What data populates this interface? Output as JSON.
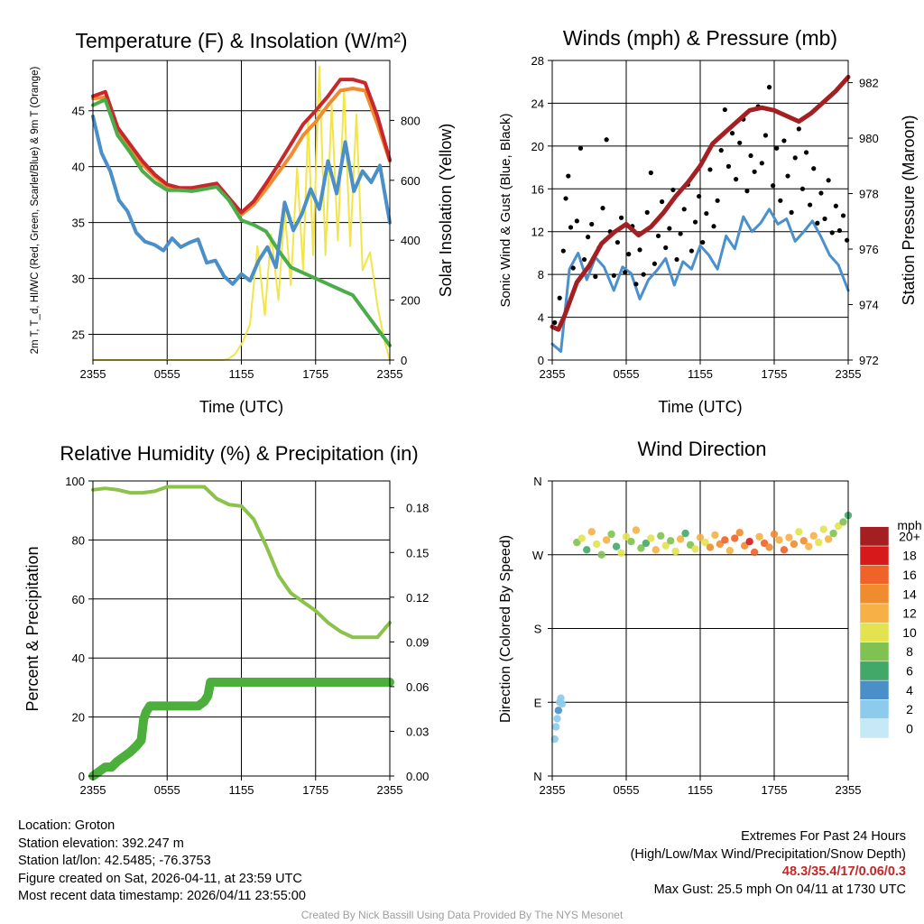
{
  "chart_data": [
    {
      "type": "line",
      "title": "Temperature (F) & Insolation (W/m²)",
      "ylabel_left": "2m T, T_d, HI/WC (Red, Green, Scarlet/Blue) & 9m T (Orange)",
      "ylabel_right": "Solar Insolation (Yellow)",
      "xlabel": "Time (UTC)",
      "x_ticks": [
        "2355",
        "0555",
        "1155",
        "1755",
        "2355"
      ],
      "ylim_left": [
        22.7,
        49.5
      ],
      "yticks_left": [
        25,
        30,
        35,
        40,
        45
      ],
      "ylim_right": [
        0,
        1000
      ],
      "yticks_right": [
        0,
        200,
        400,
        600,
        800
      ],
      "x_hours": [
        0,
        24
      ],
      "series": [
        {
          "name": "Insolation",
          "axis": "right",
          "color": "#f2e54a",
          "x": [
            0,
            4,
            8,
            9.2,
            10.6,
            11.0,
            11.5,
            12.1,
            12.7,
            13.3,
            13.9,
            14.4,
            15.0,
            15.5,
            16.0,
            16.5,
            17.0,
            17.4,
            17.8,
            18.3,
            18.8,
            19.3,
            19.8,
            20.3,
            20.8,
            21.3,
            21.8,
            22.4,
            23.0,
            23.6,
            24.0
          ],
          "values": [
            0,
            0,
            0,
            0,
            0,
            5,
            20,
            60,
            120,
            380,
            150,
            420,
            200,
            500,
            250,
            640,
            300,
            800,
            350,
            980,
            350,
            850,
            400,
            900,
            380,
            820,
            300,
            360,
            180,
            60,
            0
          ]
        },
        {
          "name": "9m T",
          "axis": "left",
          "color": "#f08c2e",
          "x": [
            0,
            1,
            2,
            3,
            4,
            5,
            6,
            7,
            8,
            9,
            10,
            11,
            12,
            13,
            14,
            15,
            16,
            17,
            18,
            19,
            20,
            21,
            22,
            23,
            24
          ],
          "values": [
            46.1,
            46.2,
            43.2,
            41.8,
            40.2,
            39.1,
            38.2,
            37.9,
            37.9,
            38.1,
            38.3,
            37.0,
            35.7,
            36.6,
            38.0,
            39.5,
            41.0,
            42.8,
            44.0,
            45.5,
            46.8,
            47.0,
            46.8,
            43.8,
            40.5
          ]
        },
        {
          "name": "2m T",
          "axis": "left",
          "color": "#c8282c",
          "x": [
            0,
            1,
            2,
            3,
            4,
            5,
            6,
            7,
            8,
            9,
            10,
            11,
            12,
            13,
            14,
            15,
            16,
            17,
            18,
            19,
            20,
            21,
            22,
            23,
            24
          ],
          "values": [
            46.3,
            46.7,
            43.5,
            42.0,
            40.5,
            39.3,
            38.4,
            38.1,
            38.1,
            38.3,
            38.5,
            37.2,
            35.9,
            36.9,
            38.5,
            40.2,
            42.0,
            43.8,
            45.0,
            46.3,
            47.8,
            47.8,
            47.5,
            44.5,
            40.6
          ]
        },
        {
          "name": "Dewpoint T_d",
          "axis": "left",
          "color": "#4aad4a",
          "x": [
            0,
            1,
            2,
            3,
            4,
            5,
            6,
            7,
            8,
            9,
            10,
            11,
            12,
            13,
            14,
            15,
            16,
            17,
            18,
            19,
            20,
            21,
            22,
            23,
            24
          ],
          "values": [
            45.5,
            46.0,
            42.8,
            41.3,
            39.6,
            38.6,
            37.9,
            37.9,
            37.8,
            38.0,
            38.2,
            37.0,
            35.2,
            34.8,
            34.2,
            32.5,
            31.0,
            30.5,
            30.0,
            29.5,
            29.0,
            28.5,
            27.0,
            25.5,
            24.0
          ]
        },
        {
          "name": "Wind Chill",
          "axis": "left",
          "color": "#4b8fc8",
          "x": [
            0,
            0.7,
            1.4,
            2.1,
            2.8,
            3.5,
            4.2,
            5.0,
            5.7,
            6.4,
            7.1,
            7.8,
            8.5,
            9.2,
            9.9,
            10.6,
            11.3,
            12.0,
            12.7,
            13.4,
            14.1,
            14.8,
            15.5,
            16.2,
            16.9,
            17.6,
            18.3,
            19.0,
            19.7,
            20.4,
            21.1,
            21.8,
            22.5,
            23.2,
            24.0
          ],
          "values": [
            44.5,
            41.2,
            39.6,
            37.0,
            36.0,
            34.1,
            33.3,
            33.0,
            32.5,
            33.6,
            32.8,
            33.2,
            33.5,
            31.4,
            31.6,
            30.2,
            29.5,
            30.4,
            29.8,
            31.6,
            32.8,
            31.0,
            36.8,
            34.3,
            35.8,
            38.0,
            36.2,
            40.5,
            37.6,
            42.2,
            37.8,
            39.6,
            38.6,
            40.1,
            35.0
          ]
        }
      ]
    },
    {
      "type": "line",
      "title": "Winds (mph) & Pressure (mb)",
      "ylabel_left": "Sonic Wind & Gust (Blue, Black)",
      "ylabel_right": "Station Pressure (Maroon)",
      "xlabel": "Time (UTC)",
      "x_ticks": [
        "2355",
        "0555",
        "1155",
        "1755",
        "2355"
      ],
      "ylim_left": [
        0,
        28
      ],
      "yticks_left": [
        0,
        4,
        8,
        12,
        16,
        20,
        24,
        28
      ],
      "ylim_right": [
        972,
        982.8
      ],
      "yticks_right": [
        972,
        974,
        976,
        978,
        980,
        982
      ],
      "series": [
        {
          "name": "Sonic Wind",
          "axis": "left",
          "color": "#4a90cc",
          "x": [
            0,
            0.7,
            1.4,
            2.1,
            2.8,
            3.5,
            4.2,
            5.0,
            5.7,
            6.4,
            7.1,
            7.8,
            8.5,
            9.2,
            9.9,
            10.6,
            11.3,
            12.0,
            12.7,
            13.4,
            14.1,
            14.8,
            15.5,
            16.2,
            16.9,
            17.6,
            18.3,
            19.0,
            19.7,
            20.4,
            21.1,
            21.8,
            22.5,
            23.2,
            24.0
          ],
          "values": [
            1.5,
            0.8,
            8.5,
            10.0,
            7.5,
            9.6,
            8.7,
            6.5,
            8.7,
            8.1,
            5.7,
            7.5,
            8.4,
            9.5,
            7.0,
            9.2,
            8.5,
            10.7,
            9.8,
            8.5,
            11.6,
            10.4,
            13.4,
            12.0,
            12.8,
            14.1,
            12.7,
            13.2,
            11.1,
            12.0,
            13.0,
            11.5,
            9.8,
            8.9,
            6.5
          ]
        },
        {
          "name": "Gust",
          "axis": "left",
          "color": "#000000",
          "style": "dots",
          "x": [
            0.2,
            0.6,
            0.9,
            1.1,
            1.3,
            1.5,
            1.7,
            2.0,
            2.3,
            2.6,
            2.9,
            3.2,
            3.5,
            3.8,
            4.1,
            4.4,
            4.7,
            5.0,
            5.3,
            5.6,
            5.9,
            6.2,
            6.5,
            6.8,
            7.1,
            7.4,
            7.7,
            8.0,
            8.3,
            8.6,
            8.9,
            9.2,
            9.5,
            9.8,
            10.1,
            10.4,
            10.7,
            11.0,
            11.3,
            11.6,
            11.9,
            12.2,
            12.5,
            12.8,
            13.1,
            13.4,
            13.7,
            14.0,
            14.3,
            14.6,
            14.9,
            15.2,
            15.5,
            15.8,
            16.1,
            16.4,
            16.7,
            17.0,
            17.3,
            17.6,
            17.9,
            18.2,
            18.5,
            18.8,
            19.1,
            19.4,
            19.7,
            20.0,
            20.3,
            20.6,
            20.9,
            21.2,
            21.5,
            21.8,
            22.1,
            22.4,
            22.7,
            23.0,
            23.3,
            23.6,
            23.9
          ],
          "values": [
            3.5,
            5.8,
            10.2,
            15.1,
            17.2,
            12.4,
            8.6,
            13.0,
            19.8,
            9.4,
            11.5,
            12.7,
            7.8,
            10.5,
            14.2,
            20.6,
            12.0,
            7.9,
            11.0,
            13.3,
            8.2,
            9.9,
            12.5,
            7.1,
            10.3,
            8.0,
            13.8,
            17.5,
            9.0,
            11.6,
            14.8,
            10.5,
            12.3,
            15.9,
            9.4,
            11.8,
            14.1,
            16.4,
            10.2,
            12.9,
            15.3,
            11.0,
            13.7,
            17.8,
            12.5,
            14.9,
            19.6,
            23.4,
            18.1,
            21.2,
            16.9,
            20.3,
            22.5,
            15.8,
            19.1,
            17.6,
            23.7,
            18.4,
            21.0,
            25.5,
            16.3,
            19.8,
            14.9,
            20.5,
            17.2,
            13.8,
            18.9,
            21.6,
            16.0,
            19.4,
            14.5,
            17.9,
            12.8,
            15.6,
            13.2,
            16.8,
            11.9,
            14.4,
            12.1,
            13.5,
            11.2
          ]
        },
        {
          "name": "Station Pressure",
          "axis": "right",
          "color": "#a31f22",
          "x": [
            0,
            0.5,
            1.0,
            2.0,
            3.0,
            4.0,
            5.0,
            6.0,
            7.0,
            8.0,
            9.0,
            10.0,
            11.0,
            12.0,
            13.0,
            14.0,
            15.0,
            16.0,
            17.0,
            18.0,
            19.0,
            20.0,
            21.0,
            22.0,
            23.0,
            24.0
          ],
          "values": [
            973.2,
            973.1,
            973.6,
            974.8,
            975.4,
            976.2,
            976.6,
            976.9,
            976.5,
            976.8,
            977.3,
            977.9,
            978.4,
            979.0,
            979.8,
            980.2,
            980.6,
            981.0,
            981.1,
            981.0,
            980.8,
            980.6,
            980.9,
            981.3,
            981.7,
            982.2
          ]
        }
      ]
    },
    {
      "type": "line",
      "title": "Relative Humidity (%) & Precipitation (in)",
      "ylabel_left": "Percent & Precipitation",
      "ylim_left": [
        0,
        100
      ],
      "yticks_left": [
        0,
        20,
        40,
        60,
        80,
        100
      ],
      "ylim_right": [
        0,
        0.198
      ],
      "yticks_right": [
        "0.00",
        "0.03",
        "0.06",
        "0.09",
        "0.12",
        "0.15",
        "0.18"
      ],
      "x_ticks": [
        "2355",
        "0555",
        "1155",
        "1755",
        "2355"
      ],
      "series": [
        {
          "name": "Relative Humidity",
          "axis": "left",
          "color": "#8bc34a",
          "x": [
            0,
            1,
            2,
            3,
            4,
            5,
            6,
            7,
            8,
            9,
            10,
            11,
            12,
            13,
            14,
            15,
            16,
            17,
            18,
            19,
            20,
            21,
            22,
            23,
            24
          ],
          "values": [
            97,
            97.5,
            97,
            96,
            96,
            96.5,
            98,
            98,
            98,
            98,
            94,
            92,
            91.5,
            87,
            78,
            68,
            62,
            59,
            56,
            52,
            49,
            47,
            47,
            47,
            52
          ]
        },
        {
          "name": "Precipitation",
          "axis": "right",
          "color": "#4caf3c",
          "x": [
            0,
            0.5,
            1.0,
            1.5,
            2.0,
            2.5,
            3.0,
            3.5,
            3.9,
            4.1,
            4.3,
            4.6,
            5.0,
            6.0,
            7.0,
            8.0,
            8.5,
            9.0,
            9.3,
            9.5,
            10.0,
            12.0,
            15.0,
            18.0,
            21.0,
            24.0
          ],
          "values": [
            0.0,
            0.003,
            0.006,
            0.006,
            0.01,
            0.013,
            0.016,
            0.02,
            0.024,
            0.038,
            0.043,
            0.047,
            0.047,
            0.047,
            0.047,
            0.047,
            0.047,
            0.05,
            0.054,
            0.063,
            0.063,
            0.063,
            0.063,
            0.063,
            0.063,
            0.063
          ]
        }
      ]
    },
    {
      "type": "scatter",
      "title": "Wind Direction",
      "ylabel": "Direction (Colored By Speed)",
      "y_ticks": [
        "N",
        "E",
        "S",
        "W",
        "N"
      ],
      "ylim_degrees": [
        0,
        360
      ],
      "x_ticks": [
        "2355",
        "0555",
        "1155",
        "1755",
        "2355"
      ],
      "colorbar_title": "mph",
      "colorbar_labels": [
        "0",
        "2",
        "4",
        "6",
        "8",
        "10",
        "12",
        "14",
        "16",
        "18",
        "20+"
      ],
      "colorbar_colors": [
        "#c6e9f7",
        "#8ccbec",
        "#4a8fc8",
        "#41a869",
        "#7fc251",
        "#e3e24f",
        "#f6b045",
        "#f08c2e",
        "#ef6228",
        "#d7191c",
        "#a31f22"
      ],
      "points_early": {
        "x": [
          0.2,
          0.3,
          0.4,
          0.5,
          0.6,
          0.7,
          0.8
        ],
        "deg": [
          45,
          60,
          70,
          80,
          90,
          95,
          88
        ],
        "speed": [
          1,
          2,
          1,
          3,
          2,
          1,
          2
        ]
      },
      "points_main": {
        "x": [
          2.0,
          2.4,
          2.8,
          3.2,
          3.6,
          4.0,
          4.4,
          4.8,
          5.2,
          5.6,
          6.0,
          6.4,
          6.8,
          7.2,
          7.6,
          8.0,
          8.4,
          8.8,
          9.2,
          9.6,
          10.0,
          10.4,
          10.8,
          11.2,
          11.6,
          12.0,
          12.4,
          12.8,
          13.2,
          13.6,
          14.0,
          14.4,
          14.8,
          15.2,
          15.6,
          16.0,
          16.4,
          16.8,
          17.2,
          17.6,
          18.0,
          18.4,
          18.8,
          19.2,
          19.6,
          20.0,
          20.4,
          20.8,
          21.2,
          21.6,
          22.0,
          22.4,
          22.8,
          23.2,
          23.6,
          24.0
        ],
        "deg": [
          285,
          290,
          276,
          298,
          283,
          270,
          288,
          295,
          280,
          272,
          292,
          286,
          300,
          278,
          284,
          290,
          276,
          293,
          281,
          287,
          274,
          289,
          296,
          282,
          277,
          291,
          285,
          279,
          294,
          283,
          288,
          275,
          290,
          297,
          281,
          286,
          273,
          292,
          284,
          279,
          295,
          288,
          276,
          291,
          283,
          298,
          287,
          280,
          293,
          285,
          301,
          289,
          296,
          305,
          310,
          318
        ],
        "speed": [
          8,
          10,
          6,
          11,
          9,
          7,
          12,
          8,
          6,
          9,
          10,
          7,
          11,
          8,
          6,
          9,
          12,
          7,
          10,
          8,
          9,
          11,
          6,
          8,
          10,
          12,
          9,
          14,
          11,
          13,
          15,
          12,
          16,
          14,
          13,
          17,
          15,
          12,
          16,
          14,
          13,
          11,
          15,
          12,
          14,
          10,
          13,
          11,
          12,
          10,
          9,
          11,
          8,
          10,
          7,
          6
        ]
      }
    }
  ],
  "info": {
    "location": "Location: Groton",
    "elevation": "Station elevation: 392.247 m",
    "latlon": "Station lat/lon: 42.5485; -76.3753",
    "created": "Figure created on Sat, 2026-04-11, at 23:59 UTC",
    "recent": "Most recent data timestamp: 2026/04/11 23:55:00"
  },
  "extremes": {
    "title": "Extremes For Past 24 Hours",
    "legend": "(High/Low/Max Wind/Precipitation/Snow Depth)",
    "values": "48.3/35.4/17/0.06/0.3",
    "gust": "Max Gust: 25.5 mph On 04/11 at 1730 UTC"
  },
  "credit": "Created By Nick Bassill Using Data Provided By The NYS Mesonet"
}
